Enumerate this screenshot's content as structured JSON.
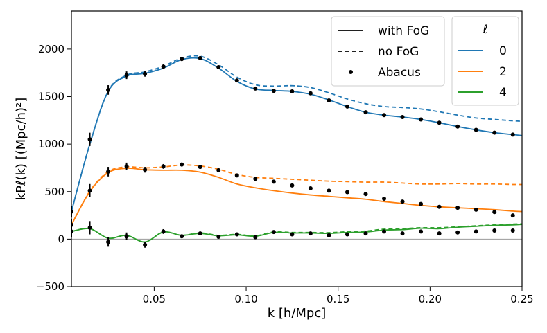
{
  "chart_data": {
    "type": "line",
    "xlabel": "k [h/Mpc]",
    "ylabel": "kPℓ(k) [(Mpc/h)²]",
    "xlim": [
      0.005,
      0.25
    ],
    "ylim": [
      -500,
      2400
    ],
    "xticks": [
      0.05,
      0.1,
      0.15,
      0.2,
      0.25
    ],
    "xtick_labels": [
      "0.05",
      "0.10",
      "0.15",
      "0.20",
      "0.25"
    ],
    "yticks": [
      -500,
      0,
      500,
      1000,
      1500,
      2000
    ],
    "ytick_labels": [
      "−500",
      "0",
      "500",
      "1000",
      "1500",
      "2000"
    ],
    "zero_line": true,
    "legend_style": {
      "title": "",
      "entries": [
        {
          "label": "with FoG",
          "style": "solid"
        },
        {
          "label": "no FoG",
          "style": "dashed"
        },
        {
          "label": "Abacus",
          "style": "dot"
        }
      ]
    },
    "legend_multipoles": {
      "title": "ℓ",
      "entries": [
        {
          "label": "0",
          "color": "#1f77b4"
        },
        {
          "label": "2",
          "color": "#ff7f0e"
        },
        {
          "label": "4",
          "color": "#2ca02c"
        }
      ]
    },
    "series": [
      {
        "name": "ℓ=0 with FoG",
        "multipole": "0",
        "style": "solid",
        "color": "#1f77b4",
        "x": [
          0.005,
          0.015,
          0.025,
          0.035,
          0.045,
          0.055,
          0.065,
          0.075,
          0.085,
          0.095,
          0.105,
          0.115,
          0.125,
          0.135,
          0.145,
          0.155,
          0.165,
          0.175,
          0.185,
          0.195,
          0.205,
          0.215,
          0.225,
          0.235,
          0.245,
          0.25
        ],
        "y": [
          290,
          1000,
          1555,
          1715,
          1745,
          1800,
          1890,
          1900,
          1800,
          1660,
          1580,
          1565,
          1555,
          1525,
          1465,
          1395,
          1335,
          1305,
          1285,
          1260,
          1225,
          1185,
          1150,
          1120,
          1100,
          1090
        ]
      },
      {
        "name": "ℓ=0 no FoG",
        "multipole": "0",
        "style": "dashed",
        "color": "#1f77b4",
        "x": [
          0.005,
          0.015,
          0.025,
          0.035,
          0.045,
          0.055,
          0.065,
          0.075,
          0.085,
          0.095,
          0.105,
          0.115,
          0.125,
          0.135,
          0.145,
          0.155,
          0.165,
          0.175,
          0.185,
          0.195,
          0.205,
          0.215,
          0.225,
          0.235,
          0.245,
          0.25
        ],
        "y": [
          290,
          1000,
          1560,
          1725,
          1760,
          1820,
          1905,
          1925,
          1835,
          1705,
          1625,
          1610,
          1615,
          1595,
          1540,
          1475,
          1425,
          1395,
          1385,
          1370,
          1340,
          1305,
          1275,
          1260,
          1245,
          1240
        ]
      },
      {
        "name": "ℓ=2 with FoG",
        "multipole": "2",
        "style": "solid",
        "color": "#ff7f0e",
        "x": [
          0.005,
          0.015,
          0.025,
          0.035,
          0.045,
          0.055,
          0.065,
          0.075,
          0.085,
          0.095,
          0.105,
          0.115,
          0.125,
          0.135,
          0.145,
          0.155,
          0.165,
          0.175,
          0.185,
          0.195,
          0.205,
          0.215,
          0.225,
          0.235,
          0.245,
          0.25
        ],
        "y": [
          150,
          500,
          700,
          745,
          730,
          725,
          725,
          705,
          650,
          580,
          540,
          510,
          485,
          465,
          450,
          435,
          420,
          395,
          375,
          355,
          340,
          330,
          320,
          310,
          295,
          290
        ]
      },
      {
        "name": "ℓ=2 no FoG",
        "multipole": "2",
        "style": "dashed",
        "color": "#ff7f0e",
        "x": [
          0.005,
          0.015,
          0.025,
          0.035,
          0.045,
          0.055,
          0.065,
          0.075,
          0.085,
          0.095,
          0.105,
          0.115,
          0.125,
          0.135,
          0.145,
          0.155,
          0.165,
          0.175,
          0.185,
          0.195,
          0.205,
          0.215,
          0.225,
          0.235,
          0.245,
          0.25
        ],
        "y": [
          150,
          505,
          710,
          760,
          750,
          760,
          780,
          770,
          735,
          680,
          650,
          640,
          630,
          620,
          610,
          605,
          600,
          600,
          590,
          580,
          580,
          585,
          580,
          580,
          575,
          575
        ]
      },
      {
        "name": "ℓ=4 with FoG",
        "multipole": "4",
        "style": "solid",
        "color": "#2ca02c",
        "x": [
          0.005,
          0.015,
          0.025,
          0.035,
          0.045,
          0.055,
          0.065,
          0.075,
          0.085,
          0.095,
          0.105,
          0.115,
          0.125,
          0.135,
          0.145,
          0.155,
          0.165,
          0.175,
          0.185,
          0.195,
          0.205,
          0.215,
          0.225,
          0.235,
          0.245,
          0.25
        ],
        "y": [
          80,
          110,
          10,
          40,
          -30,
          75,
          40,
          60,
          35,
          45,
          30,
          70,
          65,
          65,
          60,
          70,
          75,
          95,
          100,
          115,
          110,
          125,
          135,
          145,
          150,
          155
        ]
      },
      {
        "name": "ℓ=4 no FoG",
        "multipole": "4",
        "style": "dashed",
        "color": "#2ca02c",
        "x": [
          0.005,
          0.015,
          0.025,
          0.035,
          0.045,
          0.055,
          0.065,
          0.075,
          0.085,
          0.095,
          0.105,
          0.115,
          0.125,
          0.135,
          0.145,
          0.155,
          0.165,
          0.175,
          0.185,
          0.195,
          0.205,
          0.215,
          0.225,
          0.235,
          0.245,
          0.25
        ],
        "y": [
          80,
          110,
          10,
          40,
          -30,
          75,
          40,
          65,
          40,
          50,
          35,
          75,
          70,
          70,
          68,
          78,
          85,
          105,
          110,
          120,
          120,
          130,
          140,
          150,
          158,
          160
        ]
      }
    ],
    "points": [
      {
        "name": "Abacus ℓ=0",
        "multipole": "0",
        "x": [
          0.005,
          0.015,
          0.025,
          0.035,
          0.045,
          0.055,
          0.065,
          0.075,
          0.085,
          0.095,
          0.105,
          0.115,
          0.125,
          0.135,
          0.145,
          0.155,
          0.165,
          0.175,
          0.185,
          0.195,
          0.205,
          0.215,
          0.225,
          0.235,
          0.245
        ],
        "y": [
          290,
          1050,
          1570,
          1725,
          1740,
          1815,
          1895,
          1905,
          1810,
          1670,
          1585,
          1560,
          1555,
          1535,
          1460,
          1395,
          1335,
          1305,
          1285,
          1260,
          1225,
          1185,
          1150,
          1120,
          1100
        ],
        "err": [
          60,
          70,
          50,
          40,
          30,
          25,
          20,
          20,
          15,
          15,
          12,
          12,
          10,
          10,
          10,
          10,
          10,
          10,
          8,
          8,
          8,
          8,
          8,
          8,
          8
        ]
      },
      {
        "name": "Abacus ℓ=2",
        "multipole": "2",
        "x": [
          0.005,
          0.015,
          0.025,
          0.035,
          0.045,
          0.055,
          0.065,
          0.075,
          0.085,
          0.095,
          0.105,
          0.115,
          0.125,
          0.135,
          0.145,
          0.155,
          0.165,
          0.175,
          0.185,
          0.195,
          0.205,
          0.215,
          0.225,
          0.235,
          0.245
        ],
        "y": [
          150,
          510,
          710,
          765,
          730,
          765,
          785,
          760,
          725,
          670,
          635,
          605,
          565,
          535,
          510,
          495,
          475,
          425,
          395,
          370,
          340,
          330,
          310,
          285,
          250
        ],
        "err": [
          60,
          70,
          50,
          40,
          30,
          25,
          20,
          20,
          15,
          15,
          12,
          12,
          10,
          10,
          10,
          10,
          10,
          10,
          8,
          8,
          8,
          8,
          8,
          8,
          8
        ]
      },
      {
        "name": "Abacus ℓ=4",
        "multipole": "4",
        "x": [
          0.005,
          0.015,
          0.025,
          0.035,
          0.045,
          0.055,
          0.065,
          0.075,
          0.085,
          0.095,
          0.105,
          0.115,
          0.125,
          0.135,
          0.145,
          0.155,
          0.165,
          0.175,
          0.185,
          0.195,
          0.205,
          0.215,
          0.225,
          0.235,
          0.245
        ],
        "y": [
          80,
          120,
          -30,
          30,
          -60,
          80,
          30,
          60,
          25,
          50,
          20,
          75,
          50,
          60,
          40,
          50,
          60,
          80,
          60,
          80,
          60,
          70,
          80,
          90,
          90
        ],
        "err": [
          60,
          70,
          50,
          40,
          30,
          25,
          20,
          20,
          15,
          15,
          12,
          12,
          10,
          10,
          10,
          10,
          10,
          10,
          8,
          8,
          8,
          8,
          8,
          8,
          8
        ]
      }
    ]
  }
}
